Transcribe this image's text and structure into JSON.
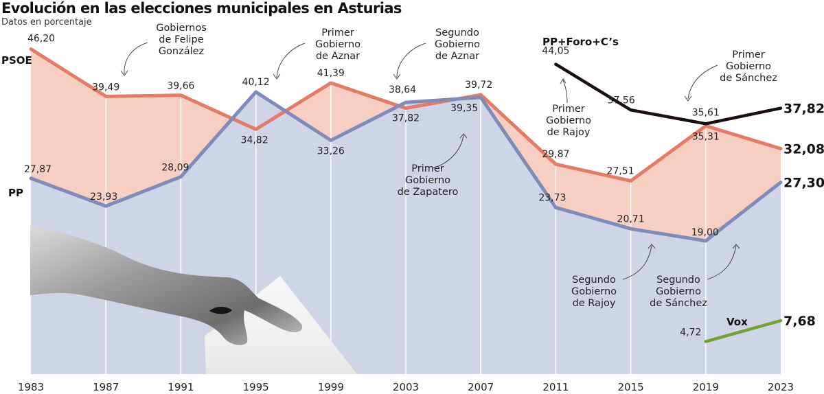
{
  "header": {
    "title": "Evolución en las elecciones municipales en Asturias",
    "subtitle": "Datos en porcentaje"
  },
  "colors": {
    "psoe_line": "#e57a66",
    "psoe_fill": "#f6cfc2",
    "pp_line": "#7f8cb9",
    "pp_fill": "#cfd4e6",
    "ppforo_line": "#1a0f0f",
    "vox_line": "#72a22f",
    "grid": "#ffffff"
  },
  "chart_data": {
    "type": "line",
    "title": "Evolución en las elecciones municipales en Asturias",
    "subtitle": "Datos en porcentaje",
    "xlabel": "",
    "ylabel": "%",
    "x": [
      "1983",
      "1987",
      "1991",
      "1995",
      "1999",
      "2003",
      "2007",
      "2011",
      "2015",
      "2019",
      "2023"
    ],
    "series": [
      {
        "name": "PSOE",
        "values": [
          46.2,
          39.49,
          39.66,
          34.82,
          41.39,
          37.82,
          39.72,
          29.87,
          27.51,
          35.31,
          32.08
        ],
        "labels": [
          "46,20",
          "39,49",
          "39,66",
          "34,82",
          "41,39",
          "37,82",
          "39,72",
          "29,87",
          "27,51",
          "35,31",
          "32,08"
        ]
      },
      {
        "name": "PP",
        "values": [
          27.87,
          23.93,
          28.09,
          40.12,
          33.26,
          38.64,
          39.35,
          23.73,
          20.71,
          19.0,
          27.3
        ],
        "labels": [
          "27,87",
          "23,93",
          "28,09",
          "40,12",
          "33,26",
          "38,64",
          "39,35",
          "23,73",
          "20,71",
          "19,00",
          "27,30"
        ]
      },
      {
        "name": "PP+Foro+C's",
        "values": [
          null,
          null,
          null,
          null,
          null,
          null,
          null,
          44.05,
          37.56,
          35.61,
          37.82
        ],
        "labels": [
          null,
          null,
          null,
          null,
          null,
          null,
          null,
          "44,05",
          "37,56",
          "35,61",
          "37,82"
        ]
      },
      {
        "name": "Vox",
        "values": [
          null,
          null,
          null,
          null,
          null,
          null,
          null,
          null,
          null,
          4.72,
          7.68
        ],
        "labels": [
          null,
          null,
          null,
          null,
          null,
          null,
          null,
          null,
          null,
          "4,72",
          "7,68"
        ]
      }
    ],
    "annotations": [
      {
        "text": "Gobiernos de Felipe González",
        "x": "1987"
      },
      {
        "text": "Primer Gobierno de Aznar",
        "x": "1995"
      },
      {
        "text": "Segundo Gobierno de Aznar",
        "x": "2003"
      },
      {
        "text": "Primer Gobierno de Zapatero",
        "x": "2007"
      },
      {
        "text": "Primer Gobierno de Rajoy",
        "x": "2011"
      },
      {
        "text": "Segundo Gobierno de Rajoy",
        "x": "2015"
      },
      {
        "text": "Primer Gobierno de Sánchez",
        "x": "2019"
      },
      {
        "text": "Segundo Gobierno de Sánchez",
        "x": "2019"
      }
    ],
    "grid": true,
    "legend": "inline labels"
  },
  "labels": {
    "psoe": "PSOE",
    "pp": "PP",
    "ppforo": "PP+Foro+C’s",
    "vox": "Vox"
  },
  "annotations": {
    "felipe": [
      "Gobiernos",
      "de Felipe",
      "González"
    ],
    "aznar1": [
      "Primer",
      "Gobierno",
      "de Aznar"
    ],
    "aznar2": [
      "Segundo",
      "Gobierno",
      "de Aznar"
    ],
    "zapatero": [
      "Primer",
      "Gobierno",
      "de Zapatero"
    ],
    "rajoy1": [
      "Primer",
      "Gobierno",
      "de Rajoy"
    ],
    "rajoy2": [
      "Segundo",
      "Gobierno",
      "de Rajoy"
    ],
    "sanchez1": [
      "Primer",
      "Gobierno",
      "de Sánchez"
    ],
    "sanchez2": [
      "Segundo",
      "Gobierno",
      "de Sánchez"
    ]
  },
  "image": {
    "description": "hand-casting-ballot-icon"
  }
}
